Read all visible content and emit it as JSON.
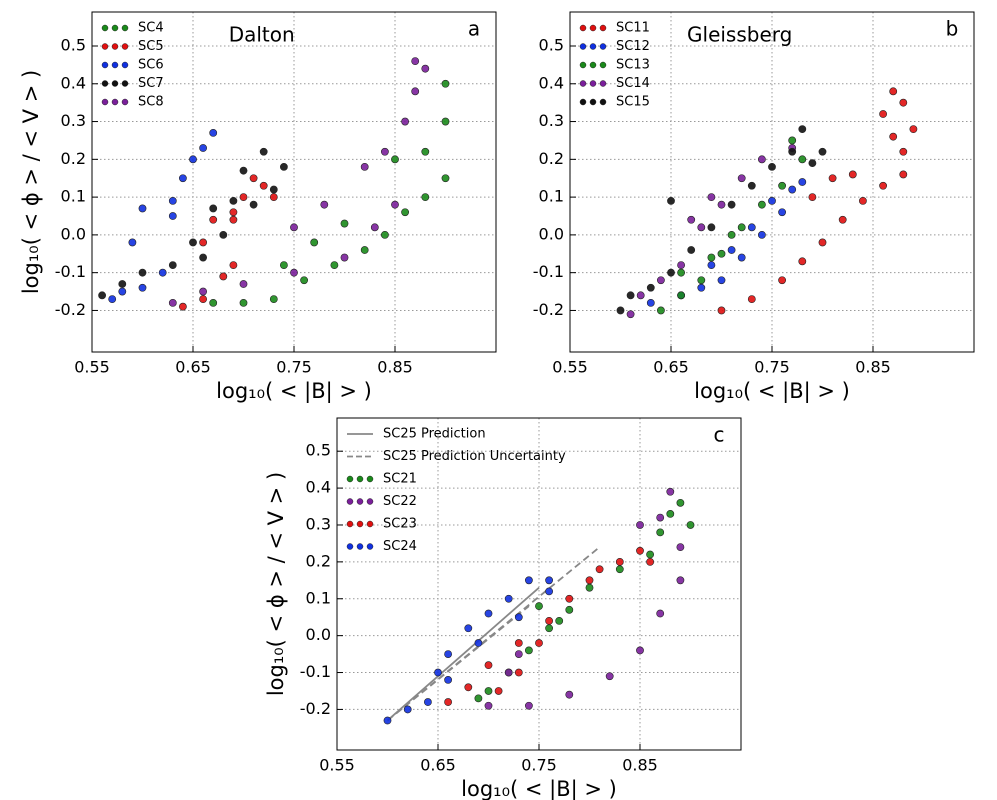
{
  "chart_data": [
    {
      "type": "scatter",
      "panel_label": "a",
      "annotation": "Dalton",
      "x_label": "log₁₀( < |B| > )",
      "y_label": "log₁₀( < ϕ > / < V > )",
      "xlim": [
        0.55,
        0.95
      ],
      "ylim": [
        -0.31,
        0.59
      ],
      "xticks": [
        0.55,
        0.65,
        0.75,
        0.85
      ],
      "yticks": [
        -0.2,
        -0.1,
        {
          "value": 0,
          "label": "0.0"
        },
        0.1,
        0.2,
        0.3,
        0.4,
        0.5
      ],
      "grid": true,
      "legend": "upper left",
      "series": [
        {
          "name": "SC4",
          "color": "#1a8a1a",
          "x": [
            0.67,
            0.7,
            0.73,
            0.76,
            0.79,
            0.82,
            0.84,
            0.86,
            0.88,
            0.9,
            0.88,
            0.9,
            0.9,
            0.85,
            0.74,
            0.77,
            0.8
          ],
          "y": [
            -0.18,
            -0.18,
            -0.17,
            -0.12,
            -0.08,
            -0.04,
            0.0,
            0.06,
            0.1,
            0.15,
            0.22,
            0.3,
            0.4,
            0.2,
            -0.08,
            -0.02,
            0.03
          ]
        },
        {
          "name": "SC5",
          "color": "#e01010",
          "x": [
            0.64,
            0.66,
            0.68,
            0.69,
            0.66,
            0.67,
            0.69,
            0.7,
            0.72,
            0.71,
            0.73,
            0.69
          ],
          "y": [
            -0.19,
            -0.17,
            -0.11,
            -0.08,
            -0.02,
            0.04,
            0.06,
            0.1,
            0.13,
            0.15,
            0.1,
            0.04
          ]
        },
        {
          "name": "SC6",
          "color": "#1030e0",
          "x": [
            0.57,
            0.58,
            0.6,
            0.62,
            0.59,
            0.6,
            0.63,
            0.64,
            0.66,
            0.67,
            0.65,
            0.63
          ],
          "y": [
            -0.17,
            -0.15,
            -0.14,
            -0.1,
            -0.02,
            0.07,
            0.09,
            0.15,
            0.23,
            0.27,
            0.2,
            0.05
          ]
        },
        {
          "name": "SC7",
          "color": "#111111",
          "x": [
            0.56,
            0.58,
            0.6,
            0.63,
            0.65,
            0.67,
            0.69,
            0.7,
            0.72,
            0.74,
            0.73,
            0.71,
            0.68,
            0.66
          ],
          "y": [
            -0.16,
            -0.13,
            -0.1,
            -0.08,
            -0.02,
            0.07,
            0.09,
            0.17,
            0.22,
            0.18,
            0.12,
            0.08,
            0.0,
            -0.06
          ]
        },
        {
          "name": "SC8",
          "color": "#7a1f9a",
          "x": [
            0.63,
            0.66,
            0.7,
            0.75,
            0.8,
            0.83,
            0.85,
            0.84,
            0.86,
            0.87,
            0.88,
            0.87,
            0.82,
            0.78,
            0.75
          ],
          "y": [
            -0.18,
            -0.15,
            -0.13,
            -0.1,
            -0.06,
            0.02,
            0.08,
            0.22,
            0.3,
            0.38,
            0.44,
            0.46,
            0.18,
            0.08,
            0.02
          ]
        }
      ]
    },
    {
      "type": "scatter",
      "panel_label": "b",
      "annotation": "Gleissberg",
      "x_label": "log₁₀( < |B| > )",
      "xlim": [
        0.55,
        0.95
      ],
      "ylim": [
        -0.31,
        0.59
      ],
      "xticks": [
        0.55,
        0.65,
        0.75,
        0.85
      ],
      "yticks": [
        -0.2,
        -0.1,
        {
          "value": 0,
          "label": "0.0"
        },
        0.1,
        0.2,
        0.3,
        0.4,
        0.5
      ],
      "grid": true,
      "legend": "upper left",
      "series": [
        {
          "name": "SC11",
          "color": "#e01010",
          "x": [
            0.7,
            0.73,
            0.76,
            0.78,
            0.8,
            0.82,
            0.84,
            0.86,
            0.88,
            0.88,
            0.87,
            0.86,
            0.87,
            0.88,
            0.89,
            0.79,
            0.81,
            0.83
          ],
          "y": [
            -0.2,
            -0.17,
            -0.12,
            -0.07,
            -0.02,
            0.04,
            0.09,
            0.13,
            0.16,
            0.22,
            0.26,
            0.32,
            0.38,
            0.35,
            0.28,
            0.1,
            0.15,
            0.16
          ]
        },
        {
          "name": "SC12",
          "color": "#1030e0",
          "x": [
            0.63,
            0.66,
            0.68,
            0.7,
            0.72,
            0.74,
            0.76,
            0.77,
            0.78,
            0.75,
            0.73,
            0.71,
            0.69
          ],
          "y": [
            -0.18,
            -0.16,
            -0.14,
            -0.12,
            -0.06,
            0.0,
            0.06,
            0.12,
            0.14,
            0.09,
            0.02,
            -0.04,
            -0.08
          ]
        },
        {
          "name": "SC13",
          "color": "#1a8a1a",
          "x": [
            0.64,
            0.66,
            0.68,
            0.7,
            0.72,
            0.74,
            0.76,
            0.78,
            0.77,
            0.71,
            0.69,
            0.66
          ],
          "y": [
            -0.2,
            -0.16,
            -0.12,
            -0.05,
            0.02,
            0.08,
            0.13,
            0.2,
            0.25,
            0.0,
            -0.06,
            -0.1
          ]
        },
        {
          "name": "SC14",
          "color": "#7a1f9a",
          "x": [
            0.61,
            0.62,
            0.64,
            0.66,
            0.68,
            0.7,
            0.72,
            0.74,
            0.77,
            0.69,
            0.67
          ],
          "y": [
            -0.21,
            -0.16,
            -0.12,
            -0.08,
            0.02,
            0.08,
            0.15,
            0.2,
            0.23,
            0.1,
            0.04
          ]
        },
        {
          "name": "SC15",
          "color": "#111111",
          "x": [
            0.6,
            0.61,
            0.63,
            0.65,
            0.67,
            0.69,
            0.71,
            0.73,
            0.75,
            0.77,
            0.78,
            0.8,
            0.79,
            0.65
          ],
          "y": [
            -0.2,
            -0.16,
            -0.14,
            -0.1,
            -0.04,
            0.02,
            0.08,
            0.13,
            0.18,
            0.22,
            0.28,
            0.22,
            0.19,
            0.09
          ]
        }
      ]
    },
    {
      "type": "scatter",
      "panel_label": "c",
      "x_label": "log₁₀( < |B| > )",
      "y_label": "log₁₀( < ϕ > / < V > )",
      "xlim": [
        0.55,
        0.95
      ],
      "ylim": [
        -0.31,
        0.59
      ],
      "xticks": [
        0.55,
        0.65,
        0.75,
        0.85
      ],
      "yticks": [
        -0.2,
        -0.1,
        {
          "value": 0,
          "label": "0.0"
        },
        0.1,
        0.2,
        0.3,
        0.4,
        0.5
      ],
      "grid": true,
      "legend": "upper left",
      "series": [
        {
          "name": "SC25 Prediction",
          "kind": "line",
          "style": "solid",
          "color": "#888888",
          "x": [
            0.6,
            0.75
          ],
          "y": [
            -0.23,
            0.13
          ]
        },
        {
          "name": "SC25 Prediction Uncertainty",
          "kind": "line",
          "style": "dashed",
          "color": "#888888",
          "x": [
            0.6,
            0.81,
            null,
            0.6,
            0.74
          ],
          "y": [
            -0.23,
            0.24,
            null,
            -0.23,
            0.08
          ]
        },
        {
          "name": "SC21",
          "color": "#1a8a1a",
          "x": [
            0.69,
            0.7,
            0.72,
            0.74,
            0.76,
            0.78,
            0.8,
            0.83,
            0.86,
            0.87,
            0.88,
            0.89,
            0.9,
            0.75,
            0.77
          ],
          "y": [
            -0.17,
            -0.15,
            -0.1,
            -0.04,
            0.02,
            0.07,
            0.13,
            0.18,
            0.22,
            0.28,
            0.33,
            0.36,
            0.3,
            0.08,
            0.04
          ]
        },
        {
          "name": "SC22",
          "color": "#7a1f9a",
          "x": [
            0.7,
            0.74,
            0.78,
            0.82,
            0.85,
            0.87,
            0.89,
            0.89,
            0.87,
            0.88,
            0.85,
            0.72,
            0.73
          ],
          "y": [
            -0.19,
            -0.19,
            -0.16,
            -0.11,
            -0.04,
            0.06,
            0.15,
            0.24,
            0.32,
            0.39,
            0.3,
            -0.1,
            -0.05
          ]
        },
        {
          "name": "SC23",
          "color": "#e01010",
          "x": [
            0.66,
            0.68,
            0.7,
            0.73,
            0.76,
            0.78,
            0.8,
            0.83,
            0.85,
            0.86,
            0.81,
            0.71,
            0.73,
            0.75
          ],
          "y": [
            -0.18,
            -0.14,
            -0.08,
            -0.02,
            0.04,
            0.1,
            0.15,
            0.2,
            0.23,
            0.2,
            0.18,
            -0.15,
            -0.1,
            -0.02
          ]
        },
        {
          "name": "SC24",
          "color": "#1030e0",
          "x": [
            0.6,
            0.62,
            0.64,
            0.65,
            0.66,
            0.68,
            0.7,
            0.72,
            0.74,
            0.76,
            0.76,
            0.73,
            0.69,
            0.66
          ],
          "y": [
            -0.23,
            -0.2,
            -0.18,
            -0.1,
            -0.05,
            0.02,
            0.06,
            0.1,
            0.15,
            0.15,
            0.12,
            0.05,
            -0.02,
            -0.12
          ]
        }
      ]
    }
  ]
}
